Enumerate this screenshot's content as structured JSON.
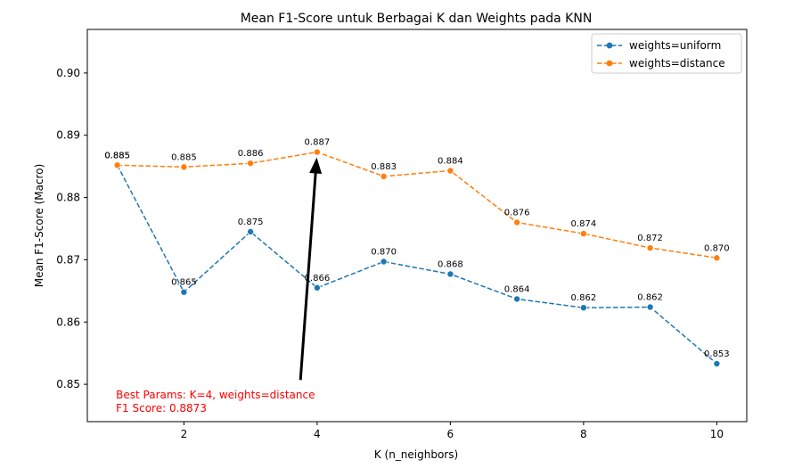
{
  "chart_data": {
    "type": "line",
    "title": "Mean F1-Score untuk Berbagai K dan Weights pada KNN",
    "xlabel": "K (n_neighbors)",
    "ylabel": "Mean F1-Score (Macro)",
    "x": [
      1,
      2,
      3,
      4,
      5,
      6,
      7,
      8,
      9,
      10
    ],
    "xlim": [
      0.55,
      10.45
    ],
    "ylim": [
      0.844,
      0.907
    ],
    "xticks": [
      2,
      4,
      6,
      8,
      10
    ],
    "yticks": [
      0.85,
      0.86,
      0.87,
      0.88,
      0.89,
      0.9
    ],
    "ytick_labels": [
      "0.85",
      "0.86",
      "0.87",
      "0.88",
      "0.89",
      "0.90"
    ],
    "grid": false,
    "legend_position": "top-right",
    "series": [
      {
        "name": "weights=uniform",
        "color": "#1f77b4",
        "values": [
          0.8852,
          0.8648,
          0.8745,
          0.8655,
          0.8697,
          0.8677,
          0.8637,
          0.8623,
          0.8624,
          0.8533
        ],
        "labels": [
          "0.885",
          "0.865",
          "0.875",
          "0.866",
          "0.870",
          "0.868",
          "0.864",
          "0.862",
          "0.862",
          "0.853"
        ]
      },
      {
        "name": "weights=distance",
        "color": "#ff7f0e",
        "values": [
          0.8852,
          0.8849,
          0.8855,
          0.8873,
          0.8834,
          0.8843,
          0.876,
          0.8742,
          0.8719,
          0.8703
        ],
        "labels": [
          "0.885",
          "0.885",
          "0.886",
          "0.887",
          "0.883",
          "0.884",
          "0.876",
          "0.874",
          "0.872",
          "0.870"
        ]
      }
    ],
    "annotation": {
      "lines": [
        "Best Params: K=4, weights=distance",
        "F1 Score: 0.8873"
      ],
      "color": "#ff0000",
      "arrow_from": [
        3.75,
        0.8507
      ],
      "arrow_to": [
        4,
        0.8873
      ],
      "text_anchor": [
        0.98,
        0.8477
      ]
    }
  }
}
